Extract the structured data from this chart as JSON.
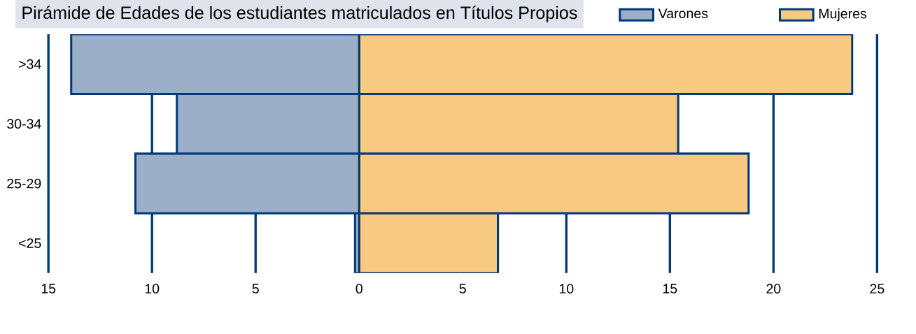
{
  "chart_data": {
    "type": "bar",
    "stacked": true,
    "orientation": "horizontal",
    "title": "Pirámide de Edades de los estudiantes matriculados en Títulos Propios",
    "categories": [
      ">34",
      "30-34",
      "25-29",
      "<25"
    ],
    "series": [
      {
        "name": "Varones",
        "color": "#9bb0c8",
        "values": [
          -13.9,
          -8.8,
          -10.8,
          -0.2
        ]
      },
      {
        "name": "Mujeres",
        "color": "#f8c981",
        "values": [
          23.8,
          15.4,
          18.8,
          6.7
        ]
      }
    ],
    "xlim": [
      -15,
      25
    ],
    "xticks": [
      {
        "value": -15,
        "label": "15"
      },
      {
        "value": -10,
        "label": "10"
      },
      {
        "value": -5,
        "label": "5"
      },
      0,
      5,
      10,
      15,
      20,
      25
    ],
    "grid": "x",
    "legend": "top right"
  }
}
